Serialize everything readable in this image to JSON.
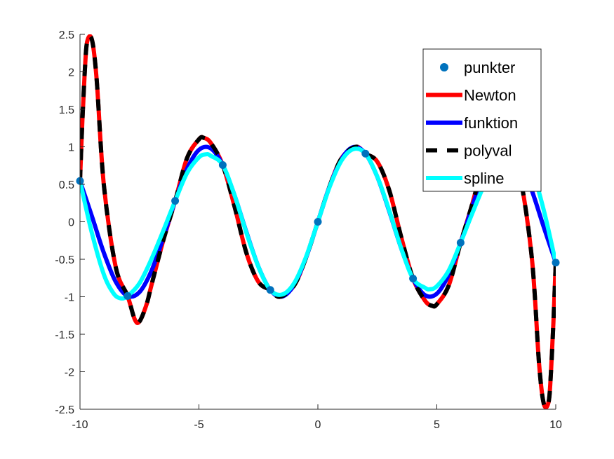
{
  "chart_data": {
    "type": "line",
    "xlim": [
      -10,
      10
    ],
    "ylim": [
      -2.5,
      2.5
    ],
    "x_ticks": [
      "-10",
      "-5",
      "0",
      "5",
      "10"
    ],
    "y_ticks": [
      "2.5",
      "2",
      "1.5",
      "1",
      "0.5",
      "0",
      "-0.5",
      "-1",
      "-1.5",
      "-2",
      "-2.5"
    ],
    "grid": false,
    "legend_position": "top-right",
    "points": {
      "name": "punkter",
      "color": "#0072BD",
      "x": [
        -10,
        -8,
        -6,
        -4,
        -2,
        0,
        2,
        4,
        6,
        8,
        10
      ],
      "y": [
        0.544,
        -0.989,
        0.279,
        0.757,
        -0.909,
        0,
        0.909,
        -0.757,
        -0.279,
        0.989,
        -0.544
      ]
    },
    "series": [
      {
        "name": "Newton",
        "color": "#FF0000",
        "x": [
          -10,
          -9.9,
          -9.8,
          -9.7,
          -9.5,
          -9.3,
          -9.0,
          -8.5,
          -8.0,
          -7.7,
          -7.5,
          -7.2,
          -7.0,
          -6.5,
          -6.0,
          -5.5,
          -5.0,
          -4.8,
          -4.5,
          -4.0,
          -3.5,
          -3.0,
          -2.5,
          -2.0,
          -1.6,
          -1.0,
          -0.5,
          0,
          0.5,
          1.0,
          1.6,
          2.0,
          2.5,
          3.0,
          3.5,
          4.0,
          4.5,
          4.8,
          5.0,
          5.5,
          6.0,
          6.5,
          7.0,
          7.2,
          7.5,
          7.7,
          8.0,
          8.5,
          9.0,
          9.3,
          9.5,
          9.7,
          9.8,
          9.9,
          10
        ],
        "y": [
          0.544,
          1.35,
          2.0,
          2.4,
          2.43,
          1.9,
          0.5,
          -0.6,
          -0.989,
          -1.3,
          -1.33,
          -1.1,
          -0.85,
          -0.25,
          0.279,
          0.85,
          1.1,
          1.12,
          1.05,
          0.757,
          0.2,
          -0.42,
          -0.8,
          -0.909,
          -1.0,
          -0.85,
          -0.48,
          0,
          0.48,
          0.85,
          1.0,
          0.909,
          0.8,
          0.42,
          -0.2,
          -0.757,
          -1.05,
          -1.12,
          -1.1,
          -0.85,
          -0.279,
          0.25,
          0.85,
          1.1,
          1.33,
          1.3,
          0.989,
          0.6,
          -0.5,
          -1.9,
          -2.43,
          -2.4,
          -2.0,
          -1.35,
          -0.544
        ]
      },
      {
        "name": "funktion",
        "color": "#0000FF",
        "x": [
          -10,
          -9.5,
          -9,
          -8.5,
          -8,
          -7.5,
          -7,
          -6.5,
          -6,
          -5.5,
          -5,
          -4.5,
          -4,
          -3.5,
          -3,
          -2.5,
          -2,
          -1.5,
          -1,
          -0.5,
          0,
          0.5,
          1,
          1.5,
          2,
          2.5,
          3,
          3.5,
          4,
          4.5,
          5,
          5.5,
          6,
          6.5,
          7,
          7.5,
          8,
          8.5,
          9,
          9.5,
          10
        ],
        "y": [
          0.544,
          0.075,
          -0.412,
          -0.798,
          -0.989,
          -0.938,
          -0.657,
          -0.215,
          0.279,
          0.706,
          0.959,
          0.978,
          0.757,
          0.351,
          -0.141,
          -0.598,
          -0.909,
          -0.997,
          -0.841,
          -0.479,
          0,
          0.479,
          0.841,
          0.997,
          0.909,
          0.598,
          0.141,
          -0.351,
          -0.757,
          -0.978,
          -0.959,
          -0.706,
          -0.279,
          0.215,
          0.657,
          0.938,
          0.989,
          0.798,
          0.412,
          -0.075,
          -0.544
        ]
      },
      {
        "name": "polyval",
        "color": "#000000",
        "x": [
          -10,
          -9.9,
          -9.8,
          -9.7,
          -9.5,
          -9.3,
          -9.0,
          -8.5,
          -8.0,
          -7.7,
          -7.5,
          -7.2,
          -7.0,
          -6.5,
          -6.0,
          -5.5,
          -5.0,
          -4.8,
          -4.5,
          -4.0,
          -3.5,
          -3.0,
          -2.5,
          -2.0,
          -1.6,
          -1.0,
          -0.5,
          0,
          0.5,
          1.0,
          1.6,
          2.0,
          2.5,
          3.0,
          3.5,
          4.0,
          4.5,
          4.8,
          5.0,
          5.5,
          6.0,
          6.5,
          7.0,
          7.2,
          7.5,
          7.7,
          8.0,
          8.5,
          9.0,
          9.3,
          9.5,
          9.7,
          9.8,
          9.9,
          10
        ],
        "y": [
          0.544,
          1.35,
          2.0,
          2.4,
          2.43,
          1.9,
          0.5,
          -0.6,
          -0.989,
          -1.3,
          -1.33,
          -1.1,
          -0.85,
          -0.25,
          0.279,
          0.85,
          1.1,
          1.12,
          1.05,
          0.757,
          0.2,
          -0.42,
          -0.8,
          -0.909,
          -1.0,
          -0.85,
          -0.48,
          0,
          0.48,
          0.85,
          1.0,
          0.909,
          0.8,
          0.42,
          -0.2,
          -0.757,
          -1.05,
          -1.12,
          -1.1,
          -0.85,
          -0.279,
          0.25,
          0.85,
          1.1,
          1.33,
          1.3,
          0.989,
          0.6,
          -0.5,
          -1.9,
          -2.43,
          -2.4,
          -2.0,
          -1.35,
          -0.544
        ]
      },
      {
        "name": "spline",
        "color": "#00FFFF",
        "x": [
          -10,
          -9.5,
          -9,
          -8.6,
          -8.3,
          -8,
          -7.5,
          -7,
          -6.5,
          -6,
          -5.5,
          -5,
          -4.7,
          -4.5,
          -4,
          -3.5,
          -3,
          -2.5,
          -2,
          -1.5,
          -1,
          -0.5,
          0,
          0.5,
          1,
          1.5,
          2,
          2.5,
          3,
          3.5,
          4,
          4.5,
          4.7,
          5,
          5.5,
          6,
          6.5,
          7,
          7.5,
          8,
          8.3,
          8.6,
          9,
          9.5,
          10
        ],
        "y": [
          0.544,
          -0.15,
          -0.7,
          -0.95,
          -1.02,
          -0.989,
          -0.82,
          -0.5,
          -0.12,
          0.279,
          0.65,
          0.86,
          0.9,
          0.88,
          0.757,
          0.35,
          -0.15,
          -0.6,
          -0.909,
          -0.97,
          -0.82,
          -0.47,
          0,
          0.47,
          0.82,
          0.97,
          0.909,
          0.6,
          0.15,
          -0.35,
          -0.757,
          -0.88,
          -0.9,
          -0.86,
          -0.65,
          -0.279,
          0.12,
          0.5,
          0.82,
          0.989,
          1.02,
          0.95,
          0.7,
          0.15,
          -0.544
        ]
      }
    ]
  }
}
